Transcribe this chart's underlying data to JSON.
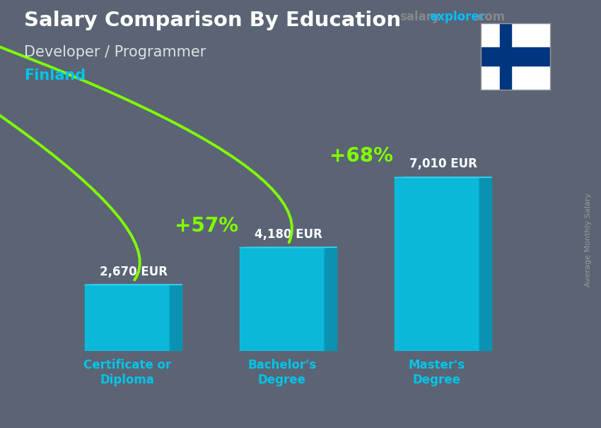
{
  "title": "Salary Comparison By Education",
  "subtitle": "Developer / Programmer",
  "country": "Finland",
  "ylabel": "Average Monthly Salary",
  "categories": [
    "Certificate or\nDiploma",
    "Bachelor's\nDegree",
    "Master's\nDegree"
  ],
  "values": [
    2670,
    4180,
    7010
  ],
  "value_labels": [
    "2,670 EUR",
    "4,180 EUR",
    "7,010 EUR"
  ],
  "pct_labels": [
    "+57%",
    "+68%"
  ],
  "bar_color_main": "#00C5E8",
  "bar_color_side": "#0099BB",
  "bar_color_top": "#33D5F5",
  "bar_alpha": 0.88,
  "bg_color": "#5a6475",
  "title_color": "#ffffff",
  "subtitle_color": "#e0e0e0",
  "country_color": "#00C5E8",
  "watermark_salary_color": "#888888",
  "watermark_explorer_color": "#00BFFF",
  "watermark_com_color": "#888888",
  "value_label_color": "#ffffff",
  "pct_color": "#80FF00",
  "arrow_color": "#80FF00",
  "xlabel_color": "#00C5E8",
  "ylabel_color": "#999999",
  "figsize": [
    8.5,
    6.06
  ],
  "dpi": 100,
  "ylim": [
    0,
    9000
  ],
  "bar_width": 0.55,
  "bar_positions": [
    0,
    1,
    2
  ],
  "flag_blue": "#003580",
  "flag_white": "#ffffff"
}
